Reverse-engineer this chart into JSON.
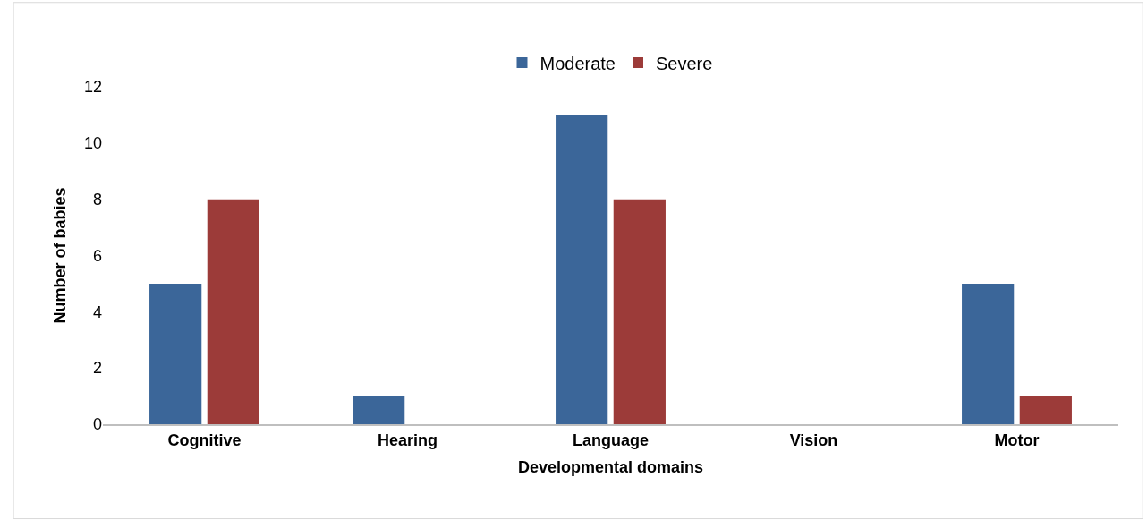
{
  "chart_data": {
    "type": "bar",
    "xlabel": "Developmental domains",
    "ylabel": "Number of babies",
    "categories": [
      "Cognitive",
      "Hearing",
      "Language",
      "Vision",
      "Motor"
    ],
    "series": [
      {
        "name": "Moderate",
        "color": "#3b6699",
        "values": [
          5,
          1,
          11,
          0,
          5
        ]
      },
      {
        "name": "Severe",
        "color": "#9c3b39",
        "values": [
          8,
          0,
          8,
          0,
          1
        ]
      }
    ],
    "ylim": [
      0,
      12
    ],
    "yticks": [
      0,
      2,
      4,
      6,
      8,
      10,
      12
    ],
    "grid": false,
    "legend": "top"
  }
}
